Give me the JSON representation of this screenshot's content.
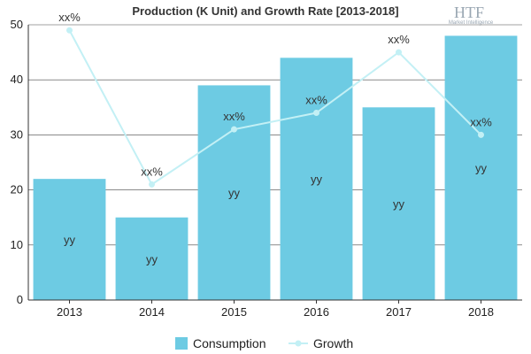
{
  "title": "Production (K Unit) and Growth Rate [2013-2018]",
  "logo": {
    "mark": "HTF",
    "tagline": "Market Intelligence"
  },
  "colors": {
    "bar": "#6dcbe3",
    "line": "#c3f0f5",
    "grid": "#444444",
    "axis": "#333333"
  },
  "chart_data": {
    "type": "bar",
    "categories": [
      "2013",
      "2014",
      "2015",
      "2016",
      "2017",
      "2018"
    ],
    "ylim": [
      0,
      50
    ],
    "yticks": [
      0,
      10,
      20,
      30,
      40,
      50
    ],
    "grid": true,
    "legend_position": "bottom",
    "series": [
      {
        "name": "Consumption",
        "type": "bar",
        "values": [
          22,
          15,
          39,
          44,
          35,
          48
        ],
        "labels": [
          "yy",
          "yy",
          "yy",
          "yy",
          "yy",
          "yy"
        ]
      },
      {
        "name": "Growth",
        "type": "line",
        "values": [
          49,
          21,
          31,
          34,
          45,
          30
        ],
        "labels": [
          "xx%",
          "xx%",
          "xx%",
          "xx%",
          "xx%",
          "xx%"
        ]
      }
    ]
  }
}
